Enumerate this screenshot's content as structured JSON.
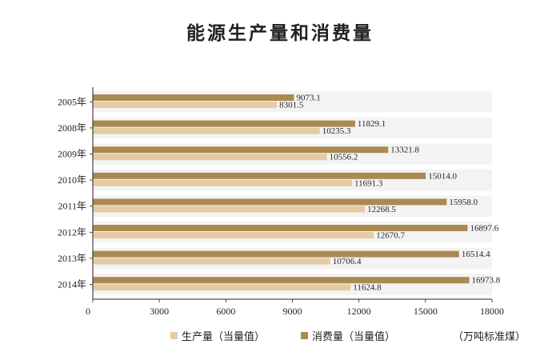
{
  "chart_data": {
    "type": "bar",
    "orientation": "horizontal",
    "title": "能源生产量和消费量",
    "unit": "（万吨标准煤）",
    "categories": [
      "2005年",
      "2008年",
      "2009年",
      "2010年",
      "2011年",
      "2012年",
      "2013年",
      "2014年"
    ],
    "series": [
      {
        "name": "消费量（当量值）",
        "color": "#ab8a52",
        "values": [
          9073.1,
          11829.1,
          13321.8,
          15014.0,
          15958.0,
          16897.6,
          16514.4,
          16973.8
        ]
      },
      {
        "name": "生产量（当量值）",
        "color": "#e4cba3",
        "values": [
          8301.5,
          10235.3,
          10556.2,
          11691.3,
          12268.5,
          12670.7,
          10706.4,
          11624.8
        ]
      }
    ],
    "xlim": [
      0,
      18000
    ],
    "xticks": [
      "0",
      "3000",
      "6000",
      "9000",
      "12000",
      "15000",
      "18000"
    ],
    "grid": false,
    "legend_position": "bottom"
  }
}
